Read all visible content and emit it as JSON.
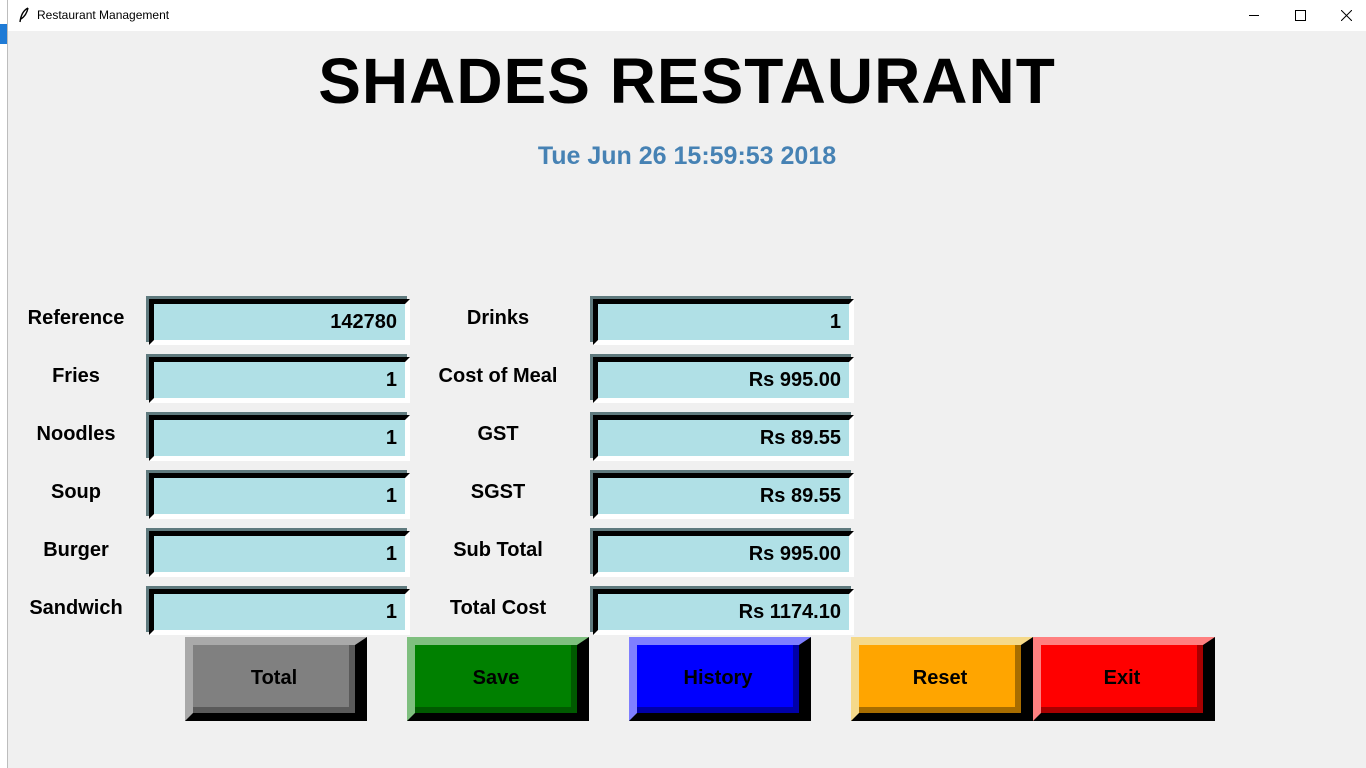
{
  "window": {
    "title": "Restaurant Management",
    "controls": [
      "minimize-icon",
      "maximize-icon",
      "close-icon"
    ]
  },
  "header": {
    "title": "SHADES RESTAURANT",
    "datetime": "Tue Jun 26 15:59:53 2018"
  },
  "left_fields": [
    {
      "label": "Reference",
      "value": "142780"
    },
    {
      "label": "Fries",
      "value": "1"
    },
    {
      "label": "Noodles",
      "value": "1"
    },
    {
      "label": "Soup",
      "value": "1"
    },
    {
      "label": "Burger",
      "value": "1"
    },
    {
      "label": "Sandwich",
      "value": "1"
    }
  ],
  "right_fields": [
    {
      "label": "Drinks",
      "value": "1"
    },
    {
      "label": "Cost of Meal",
      "value": "Rs 995.00"
    },
    {
      "label": "GST",
      "value": "Rs 89.55"
    },
    {
      "label": "SGST",
      "value": "Rs 89.55"
    },
    {
      "label": "Sub Total",
      "value": "Rs 995.00"
    },
    {
      "label": "Total Cost",
      "value": "Rs 1174.10"
    }
  ],
  "buttons": [
    {
      "label": "Total",
      "color": "#808080"
    },
    {
      "label": "Save",
      "color": "#008000"
    },
    {
      "label": "History",
      "color": "#0000ff"
    },
    {
      "label": "Reset",
      "color": "#ffa500"
    },
    {
      "label": "Exit",
      "color": "#ff0000"
    }
  ],
  "colors": {
    "field_bg": "#b0e0e6",
    "datetime": "#4682b4",
    "window_bg": "#f0f0f0"
  }
}
